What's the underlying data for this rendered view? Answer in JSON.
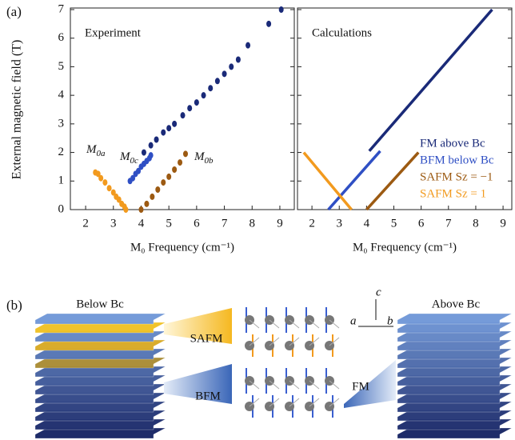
{
  "chart_data": [
    {
      "type": "scatter",
      "panel_label": "(a)",
      "title": "Experiment",
      "y_label": "External magnetic field (T)",
      "x_label": "M₀ Frequency (cm⁻¹)",
      "xlim": [
        1.45,
        9.52
      ],
      "xticks": [
        2,
        3,
        4,
        5,
        6,
        7,
        8,
        9
      ],
      "ylim": [
        0,
        7
      ],
      "yticks": [
        0,
        1,
        2,
        3,
        4,
        5,
        6,
        7
      ],
      "annotations": [
        {
          "text": "M",
          "sub": "0a"
        },
        {
          "text": "M",
          "sub": "0c"
        },
        {
          "text": "M",
          "sub": "0b"
        }
      ],
      "series": [
        {
          "color": "#f29a1e",
          "x": [
            2.35,
            2.45,
            2.55,
            2.7,
            2.85,
            3.0,
            3.1,
            3.2,
            3.3,
            3.4,
            3.45
          ],
          "values": [
            1.3,
            1.25,
            1.1,
            0.95,
            0.75,
            0.6,
            0.45,
            0.35,
            0.2,
            0.1,
            0
          ]
        },
        {
          "color": "#2f4fc4",
          "x": [
            3.6,
            3.7,
            3.8,
            3.9,
            4.0,
            4.1,
            4.2,
            4.3,
            4.35
          ],
          "values": [
            1.0,
            1.1,
            1.25,
            1.35,
            1.5,
            1.6,
            1.7,
            1.8,
            1.9
          ]
        },
        {
          "color": "#9c5a12",
          "x": [
            4.0,
            4.2,
            4.4,
            4.6,
            4.8,
            5.0,
            5.2,
            5.4,
            5.6
          ],
          "values": [
            0,
            0.2,
            0.45,
            0.7,
            0.95,
            1.15,
            1.4,
            1.65,
            1.95
          ]
        },
        {
          "color": "#1a2a78",
          "x": [
            4.1,
            4.35,
            4.55,
            4.8,
            5.0,
            5.2,
            5.5,
            5.75,
            6.0,
            6.25,
            6.5,
            6.75,
            7.0,
            7.25,
            7.5,
            7.85,
            8.6,
            9.05
          ],
          "values": [
            2.0,
            2.25,
            2.45,
            2.7,
            2.85,
            3.0,
            3.3,
            3.55,
            3.75,
            4.0,
            4.25,
            4.5,
            4.75,
            5.0,
            5.25,
            5.75,
            6.5,
            7.0
          ]
        }
      ]
    },
    {
      "type": "line",
      "title": "Calculations",
      "x_label": "M₀ Frequency (cm⁻¹)",
      "xlim": [
        1.47,
        9.32
      ],
      "xticks": [
        2,
        3,
        4,
        5,
        6,
        7,
        8,
        9
      ],
      "ylim": [
        0,
        7
      ],
      "yticks": [
        0,
        1,
        2,
        3,
        4,
        5,
        6,
        7
      ],
      "series": [
        {
          "name": "FM above Bc",
          "color": "#1a2a78",
          "x": [
            4.1,
            8.6
          ],
          "values": [
            2.05,
            7
          ]
        },
        {
          "name": "BFM below Bc",
          "color": "#2f4fc4",
          "x": [
            2.6,
            4.5
          ],
          "values": [
            0,
            2.05
          ]
        },
        {
          "name": "SAFM Sz = −1",
          "color": "#9c5a12",
          "x": [
            4.0,
            5.9
          ],
          "values": [
            0,
            2.0
          ]
        },
        {
          "name": "SAFM Sz = 1",
          "color": "#f29a1e",
          "x": [
            1.7,
            3.45
          ],
          "values": [
            2.0,
            0
          ]
        }
      ]
    }
  ],
  "diagram": {
    "panel_label": "(b)",
    "below": "Below Bc",
    "above": "Above Bc",
    "safm": "SAFM",
    "bfm": "BFM",
    "fm": "FM",
    "axis_a": "a",
    "axis_b": "b",
    "axis_c": "c"
  }
}
